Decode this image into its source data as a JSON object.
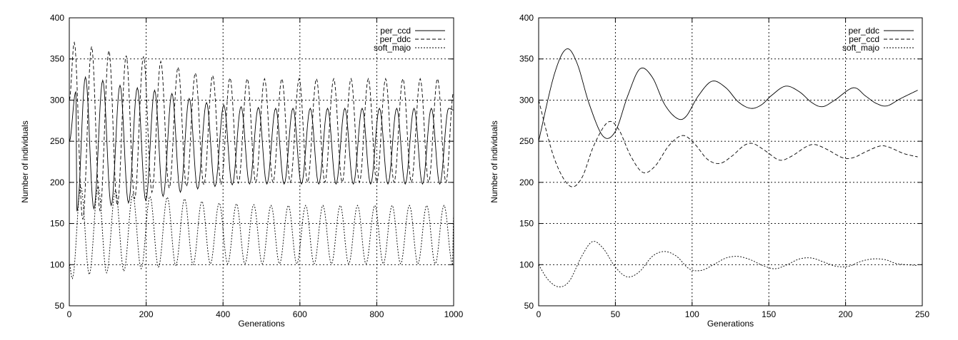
{
  "chart_data": [
    {
      "type": "line",
      "title": "",
      "xlabel": "Generations",
      "ylabel": "Number of individuals",
      "xlim": [
        0,
        1000
      ],
      "ylim": [
        50,
        400
      ],
      "xticks": [
        0,
        200,
        400,
        600,
        800,
        1000
      ],
      "yticks": [
        50,
        100,
        150,
        200,
        250,
        300,
        350,
        400
      ],
      "grid": true,
      "legend_position": "top-right",
      "series": [
        {
          "name": "per_ccd",
          "style": "solid",
          "period": 45,
          "start_value": 250,
          "peaks": [
            [
              17,
              310
            ],
            [
              42,
              328
            ],
            [
              87,
              324
            ],
            [
              132,
              318
            ],
            [
              177,
              315
            ],
            [
              222,
              312
            ],
            [
              267,
              308
            ],
            [
              312,
              302
            ],
            [
              357,
              297
            ],
            [
              402,
              294
            ],
            [
              447,
              292
            ],
            [
              492,
              291
            ],
            [
              537,
              290
            ],
            [
              582,
              290
            ],
            [
              627,
              290
            ],
            [
              672,
              290
            ],
            [
              717,
              290
            ],
            [
              762,
              290
            ],
            [
              807,
              290
            ],
            [
              852,
              290
            ],
            [
              897,
              290
            ],
            [
              942,
              290
            ],
            [
              987,
              290
            ]
          ],
          "troughs": [
            [
              20,
              165
            ],
            [
              64,
              168
            ],
            [
              109,
              172
            ],
            [
              154,
              175
            ],
            [
              199,
              178
            ],
            [
              244,
              183
            ],
            [
              289,
              188
            ],
            [
              334,
              192
            ],
            [
              379,
              195
            ],
            [
              424,
              197
            ],
            [
              469,
              198
            ],
            [
              514,
              198
            ],
            [
              559,
              198
            ],
            [
              604,
              198
            ],
            [
              649,
              198
            ],
            [
              694,
              198
            ],
            [
              739,
              198
            ],
            [
              784,
              198
            ],
            [
              829,
              198
            ],
            [
              874,
              198
            ],
            [
              919,
              198
            ],
            [
              964,
              198
            ]
          ],
          "end_value": 288
        },
        {
          "name": "per_ddc",
          "style": "dashed",
          "period": 45,
          "start_value": 300,
          "peaks": [
            [
              13,
              370
            ],
            [
              58,
              365
            ],
            [
              103,
              360
            ],
            [
              148,
              354
            ],
            [
              193,
              353
            ],
            [
              238,
              347
            ],
            [
              283,
              340
            ],
            [
              328,
              333
            ],
            [
              373,
              330
            ],
            [
              418,
              327
            ],
            [
              463,
              326
            ],
            [
              508,
              326
            ],
            [
              553,
              326
            ],
            [
              598,
              326
            ],
            [
              643,
              326
            ],
            [
              688,
              326
            ],
            [
              733,
              326
            ],
            [
              778,
              326
            ],
            [
              823,
              326
            ],
            [
              868,
              326
            ],
            [
              913,
              326
            ],
            [
              958,
              326
            ]
          ],
          "troughs": [
            [
              35,
              155
            ],
            [
              80,
              165
            ],
            [
              125,
              172
            ],
            [
              170,
              180
            ],
            [
              215,
              188
            ],
            [
              260,
              193
            ],
            [
              305,
              195
            ],
            [
              350,
              197
            ],
            [
              395,
              198
            ],
            [
              440,
              199
            ],
            [
              485,
              200
            ],
            [
              530,
              200
            ],
            [
              575,
              200
            ],
            [
              620,
              200
            ],
            [
              665,
              200
            ],
            [
              710,
              200
            ],
            [
              755,
              200
            ],
            [
              800,
              200
            ],
            [
              845,
              200
            ],
            [
              890,
              200
            ],
            [
              935,
              200
            ],
            [
              980,
              200
            ]
          ],
          "end_value": 310
        },
        {
          "name": "soft_majo",
          "style": "dotted",
          "period": 45,
          "start_value": 100,
          "peaks": [
            [
              30,
              195
            ],
            [
              75,
              195
            ],
            [
              120,
              190
            ],
            [
              165,
              185
            ],
            [
              210,
              183
            ],
            [
              255,
              182
            ],
            [
              300,
              180
            ],
            [
              345,
              177
            ],
            [
              390,
              175
            ],
            [
              435,
              174
            ],
            [
              480,
              173
            ],
            [
              525,
              172
            ],
            [
              570,
              172
            ],
            [
              615,
              172
            ],
            [
              660,
              172
            ],
            [
              705,
              172
            ],
            [
              750,
              172
            ],
            [
              795,
              172
            ],
            [
              840,
              172
            ],
            [
              885,
              172
            ],
            [
              930,
              172
            ],
            [
              975,
              172
            ]
          ],
          "troughs": [
            [
              8,
              83
            ],
            [
              52,
              88
            ],
            [
              97,
              90
            ],
            [
              142,
              92
            ],
            [
              187,
              95
            ],
            [
              232,
              97
            ],
            [
              277,
              99
            ],
            [
              322,
              100
            ],
            [
              367,
              101
            ],
            [
              412,
              101
            ],
            [
              457,
              101
            ],
            [
              502,
              101
            ],
            [
              547,
              101
            ],
            [
              592,
              101
            ],
            [
              637,
              101
            ],
            [
              682,
              101
            ],
            [
              727,
              101
            ],
            [
              772,
              101
            ],
            [
              817,
              101
            ],
            [
              862,
              101
            ],
            [
              907,
              101
            ],
            [
              952,
              101
            ],
            [
              997,
              101
            ]
          ],
          "end_value": 160
        }
      ]
    },
    {
      "type": "line",
      "title": "",
      "xlabel": "Generations",
      "ylabel": "Number of individuals",
      "xlim": [
        0,
        250
      ],
      "ylim": [
        50,
        400
      ],
      "xticks": [
        0,
        50,
        100,
        150,
        200,
        250
      ],
      "yticks": [
        50,
        100,
        150,
        200,
        250,
        300,
        350,
        400
      ],
      "grid": true,
      "legend_position": "top-right",
      "series": [
        {
          "name": "per_ddc",
          "style": "solid",
          "points": [
            [
              0,
              250
            ],
            [
              10,
              330
            ],
            [
              18,
              362
            ],
            [
              25,
              345
            ],
            [
              33,
              295
            ],
            [
              42,
              256
            ],
            [
              50,
              262
            ],
            [
              58,
              305
            ],
            [
              66,
              338
            ],
            [
              74,
              328
            ],
            [
              82,
              295
            ],
            [
              90,
              278
            ],
            [
              96,
              280
            ],
            [
              104,
              305
            ],
            [
              113,
              323
            ],
            [
              122,
              315
            ],
            [
              130,
              298
            ],
            [
              138,
              290
            ],
            [
              145,
              294
            ],
            [
              152,
              306
            ],
            [
              161,
              317
            ],
            [
              170,
              310
            ],
            [
              178,
              297
            ],
            [
              185,
              292
            ],
            [
              193,
              300
            ],
            [
              205,
              315
            ],
            [
              213,
              305
            ],
            [
              220,
              296
            ],
            [
              227,
              293
            ],
            [
              236,
              302
            ],
            [
              247,
              312
            ]
          ]
        },
        {
          "name": "per_ccd",
          "style": "dashed",
          "points": [
            [
              0,
              300
            ],
            [
              10,
              230
            ],
            [
              20,
              196
            ],
            [
              28,
              205
            ],
            [
              36,
              245
            ],
            [
              45,
              273
            ],
            [
              52,
              265
            ],
            [
              60,
              232
            ],
            [
              68,
              212
            ],
            [
              76,
              220
            ],
            [
              85,
              245
            ],
            [
              94,
              257
            ],
            [
              102,
              246
            ],
            [
              110,
              228
            ],
            [
              118,
              223
            ],
            [
              126,
              232
            ],
            [
              134,
              245
            ],
            [
              140,
              247
            ],
            [
              148,
              238
            ],
            [
              157,
              227
            ],
            [
              165,
              232
            ],
            [
              174,
              243
            ],
            [
              180,
              246
            ],
            [
              188,
              240
            ],
            [
              198,
              230
            ],
            [
              205,
              230
            ],
            [
              213,
              237
            ],
            [
              222,
              244
            ],
            [
              228,
              243
            ],
            [
              238,
              235
            ],
            [
              247,
              231
            ]
          ]
        },
        {
          "name": "soft_majo",
          "style": "dotted",
          "points": [
            [
              0,
              100
            ],
            [
              6,
              82
            ],
            [
              13,
              73
            ],
            [
              20,
              80
            ],
            [
              28,
              110
            ],
            [
              35,
              128
            ],
            [
              42,
              120
            ],
            [
              50,
              97
            ],
            [
              58,
              85
            ],
            [
              66,
              92
            ],
            [
              74,
              110
            ],
            [
              82,
              116
            ],
            [
              90,
              110
            ],
            [
              98,
              95
            ],
            [
              106,
              93
            ],
            [
              114,
              100
            ],
            [
              122,
              108
            ],
            [
              130,
              110
            ],
            [
              138,
              106
            ],
            [
              146,
              99
            ],
            [
              154,
              95
            ],
            [
              162,
              100
            ],
            [
              170,
              107
            ],
            [
              178,
              108
            ],
            [
              186,
              103
            ],
            [
              194,
              98
            ],
            [
              202,
              98
            ],
            [
              210,
              104
            ],
            [
              218,
              107
            ],
            [
              226,
              106
            ],
            [
              234,
              101
            ],
            [
              247,
              99
            ]
          ]
        }
      ]
    }
  ]
}
